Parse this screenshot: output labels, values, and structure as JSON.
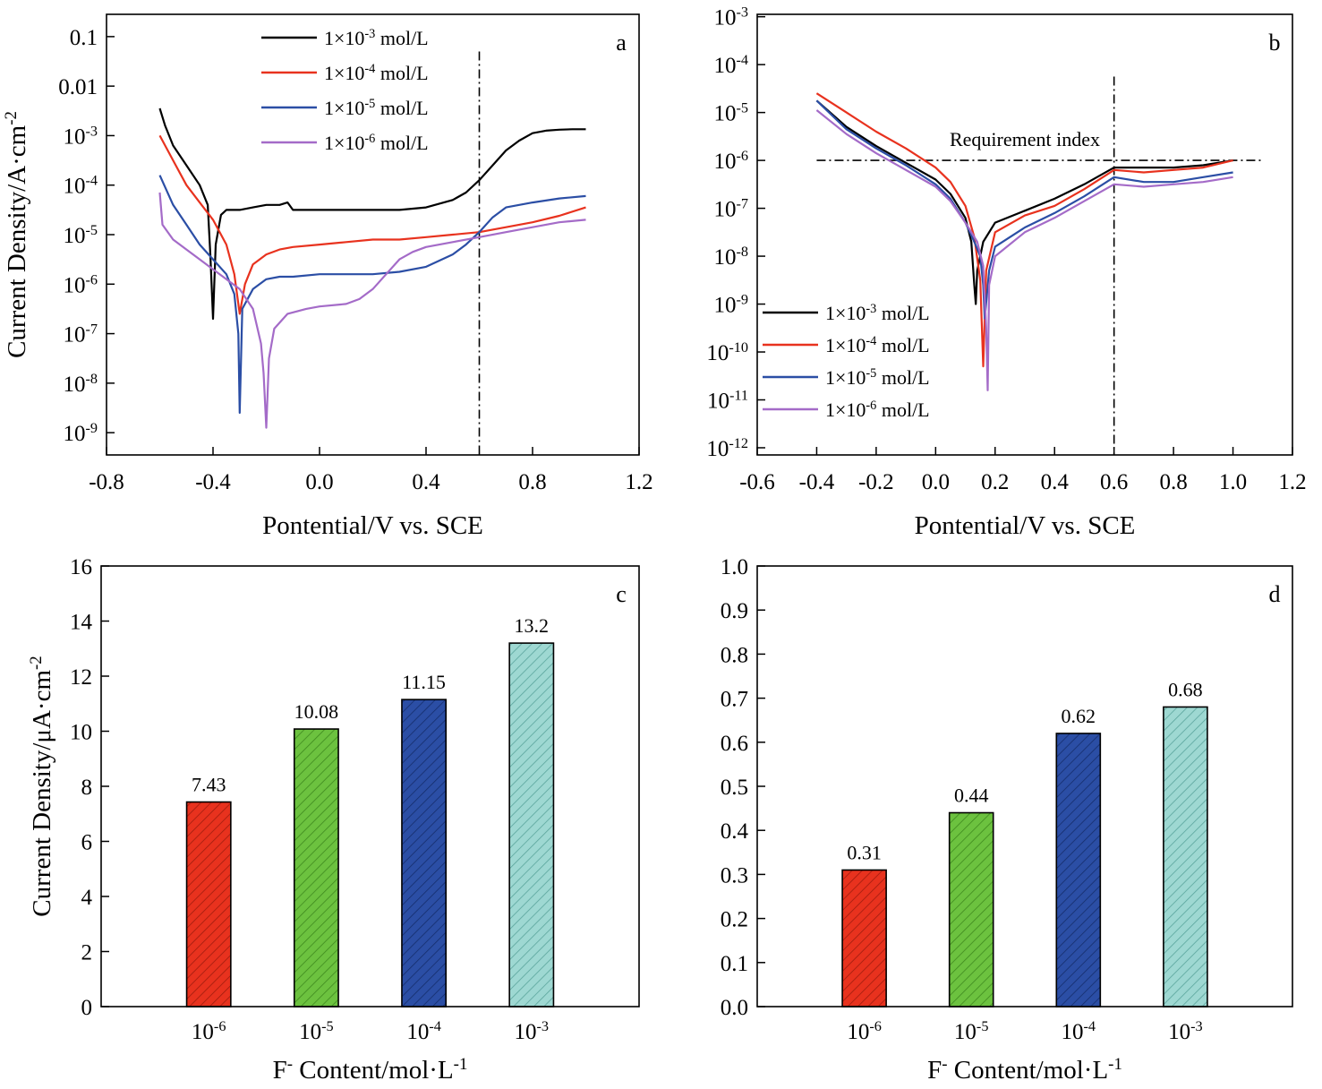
{
  "chart_data": [
    {
      "id": "a",
      "type": "line",
      "panel_label": "a",
      "xlabel": "Pontential/V vs. SCE",
      "ylabel": "Current Density/A·cm",
      "ylabel_sup": "-2",
      "xlim": [
        -0.8,
        1.2
      ],
      "ylog": true,
      "ylim_exp": [
        -9.45,
        -0.55
      ],
      "xticks": [
        -0.8,
        -0.4,
        0.0,
        0.4,
        0.8,
        1.2
      ],
      "xtick_labels": [
        "-0.8",
        "-0.4",
        "0.0",
        "0.4",
        "0.8",
        "1.2"
      ],
      "yticks_exp": [
        -9,
        -8,
        -7,
        -6,
        -5,
        -4,
        -3,
        -2,
        -1
      ],
      "ytick_labels": [
        {
          "base": "10",
          "sup": "-9"
        },
        {
          "base": "10",
          "sup": "-8"
        },
        {
          "base": "10",
          "sup": "-7"
        },
        {
          "base": "10",
          "sup": "-6"
        },
        {
          "base": "10",
          "sup": "-5"
        },
        {
          "base": "10",
          "sup": "-4"
        },
        {
          "base": "10",
          "sup": "-3"
        },
        {
          "base": "0.01",
          "sup": ""
        },
        {
          "base": "0.1",
          "sup": ""
        }
      ],
      "vline_x": 0.6,
      "legend_position": "top-center",
      "series": [
        {
          "name": "1×10",
          "name_sup": "-3",
          "name_suffix": " mol/L",
          "color": "#000000",
          "x": [
            -0.6,
            -0.58,
            -0.55,
            -0.5,
            -0.45,
            -0.42,
            -0.41,
            -0.4,
            -0.39,
            -0.37,
            -0.35,
            -0.3,
            -0.25,
            -0.2,
            -0.15,
            -0.12,
            -0.1,
            -0.05,
            0.0,
            0.1,
            0.2,
            0.3,
            0.4,
            0.5,
            0.55,
            0.6,
            0.65,
            0.7,
            0.75,
            0.8,
            0.85,
            0.9,
            0.95,
            1.0
          ],
          "y_exp": [
            -2.45,
            -2.8,
            -3.2,
            -3.6,
            -4.0,
            -4.4,
            -5.4,
            -6.7,
            -5.2,
            -4.6,
            -4.5,
            -4.5,
            -4.45,
            -4.4,
            -4.4,
            -4.35,
            -4.5,
            -4.5,
            -4.5,
            -4.5,
            -4.5,
            -4.5,
            -4.45,
            -4.3,
            -4.15,
            -3.9,
            -3.6,
            -3.3,
            -3.1,
            -2.95,
            -2.9,
            -2.88,
            -2.87,
            -2.87
          ]
        },
        {
          "name": "1×10",
          "name_sup": "-4",
          "name_suffix": " mol/L",
          "color": "#e8321e",
          "x": [
            -0.6,
            -0.55,
            -0.5,
            -0.45,
            -0.4,
            -0.35,
            -0.32,
            -0.3,
            -0.28,
            -0.25,
            -0.2,
            -0.15,
            -0.1,
            0.0,
            0.1,
            0.2,
            0.3,
            0.4,
            0.5,
            0.6,
            0.7,
            0.8,
            0.9,
            1.0
          ],
          "y_exp": [
            -3.0,
            -3.5,
            -4.0,
            -4.35,
            -4.7,
            -5.2,
            -5.8,
            -6.6,
            -6.0,
            -5.6,
            -5.4,
            -5.3,
            -5.25,
            -5.2,
            -5.15,
            -5.1,
            -5.1,
            -5.05,
            -5.0,
            -4.95,
            -4.85,
            -4.75,
            -4.62,
            -4.45
          ]
        },
        {
          "name": "1×10",
          "name_sup": "-5",
          "name_suffix": " mol/L",
          "color": "#2b4ea5",
          "x": [
            -0.6,
            -0.55,
            -0.5,
            -0.45,
            -0.4,
            -0.35,
            -0.32,
            -0.305,
            -0.3,
            -0.29,
            -0.25,
            -0.2,
            -0.15,
            -0.1,
            0.0,
            0.1,
            0.2,
            0.3,
            0.4,
            0.5,
            0.55,
            0.6,
            0.65,
            0.7,
            0.8,
            0.9,
            1.0
          ],
          "y_exp": [
            -3.8,
            -4.4,
            -4.8,
            -5.2,
            -5.5,
            -5.8,
            -6.2,
            -7.0,
            -8.6,
            -6.5,
            -6.1,
            -5.9,
            -5.85,
            -5.85,
            -5.8,
            -5.8,
            -5.8,
            -5.75,
            -5.65,
            -5.4,
            -5.2,
            -4.95,
            -4.65,
            -4.45,
            -4.35,
            -4.27,
            -4.22
          ]
        },
        {
          "name": "1×10",
          "name_sup": "-6",
          "name_suffix": " mol/L",
          "color": "#a46bc8",
          "x": [
            -0.6,
            -0.59,
            -0.55,
            -0.5,
            -0.45,
            -0.4,
            -0.35,
            -0.3,
            -0.25,
            -0.22,
            -0.21,
            -0.2,
            -0.19,
            -0.17,
            -0.12,
            -0.05,
            0.0,
            0.1,
            0.15,
            0.2,
            0.25,
            0.3,
            0.35,
            0.4,
            0.5,
            0.6,
            0.7,
            0.8,
            0.9,
            1.0
          ],
          "y_exp": [
            -4.15,
            -4.8,
            -5.1,
            -5.3,
            -5.5,
            -5.7,
            -5.9,
            -6.1,
            -6.5,
            -7.2,
            -7.8,
            -8.9,
            -7.5,
            -6.9,
            -6.6,
            -6.5,
            -6.45,
            -6.4,
            -6.3,
            -6.1,
            -5.8,
            -5.5,
            -5.35,
            -5.25,
            -5.15,
            -5.05,
            -4.95,
            -4.85,
            -4.75,
            -4.7
          ]
        }
      ]
    },
    {
      "id": "b",
      "type": "line",
      "panel_label": "b",
      "xlabel": "Pontential/V vs. SCE",
      "ylabel": "",
      "xlim": [
        -0.6,
        1.2
      ],
      "ylog": true,
      "ylim_exp": [
        -12.15,
        -2.95
      ],
      "xticks": [
        -0.6,
        -0.4,
        -0.2,
        0.0,
        0.2,
        0.4,
        0.6,
        0.8,
        1.0,
        1.2
      ],
      "xtick_labels": [
        "-0.6",
        "-0.4",
        "-0.2",
        "0.0",
        "0.2",
        "0.4",
        "0.6",
        "0.8",
        "1.0",
        "1.2"
      ],
      "yticks_exp": [
        -12,
        -11,
        -10,
        -9,
        -8,
        -7,
        -6,
        -5,
        -4,
        -3
      ],
      "ytick_labels": [
        {
          "base": "10",
          "sup": "-12"
        },
        {
          "base": "10",
          "sup": "-11"
        },
        {
          "base": "10",
          "sup": "-10"
        },
        {
          "base": "10",
          "sup": "-9"
        },
        {
          "base": "10",
          "sup": "-8"
        },
        {
          "base": "10",
          "sup": "-7"
        },
        {
          "base": "10",
          "sup": "-6"
        },
        {
          "base": "10",
          "sup": "-5"
        },
        {
          "base": "10",
          "sup": "-4"
        },
        {
          "base": "10",
          "sup": "-3"
        }
      ],
      "hline_exp": -6,
      "hline_xrange": [
        -0.4,
        1.1
      ],
      "hline_label": "Requirement index",
      "vline_x": 0.6,
      "legend_position": "bottom-left",
      "series": [
        {
          "name": "1×10",
          "name_sup": "-3",
          "name_suffix": " mol/L",
          "color": "#000000",
          "x": [
            -0.4,
            -0.3,
            -0.2,
            -0.1,
            0.0,
            0.05,
            0.1,
            0.12,
            0.13,
            0.135,
            0.14,
            0.16,
            0.2,
            0.3,
            0.4,
            0.5,
            0.6,
            0.7,
            0.8,
            0.9,
            1.0
          ],
          "y_exp": [
            -4.75,
            -5.3,
            -5.7,
            -6.05,
            -6.4,
            -6.7,
            -7.2,
            -7.7,
            -8.6,
            -9.0,
            -8.3,
            -7.7,
            -7.3,
            -7.05,
            -6.8,
            -6.5,
            -6.15,
            -6.15,
            -6.15,
            -6.1,
            -6.0
          ]
        },
        {
          "name": "1×10",
          "name_sup": "-4",
          "name_suffix": " mol/L",
          "color": "#e8321e",
          "x": [
            -0.4,
            -0.3,
            -0.2,
            -0.1,
            0.0,
            0.05,
            0.1,
            0.13,
            0.15,
            0.16,
            0.17,
            0.2,
            0.3,
            0.4,
            0.5,
            0.6,
            0.7,
            0.8,
            0.9,
            1.0
          ],
          "y_exp": [
            -4.6,
            -5.0,
            -5.4,
            -5.75,
            -6.15,
            -6.45,
            -6.95,
            -7.6,
            -8.5,
            -10.3,
            -8.3,
            -7.5,
            -7.15,
            -6.95,
            -6.6,
            -6.2,
            -6.25,
            -6.2,
            -6.15,
            -6.0
          ]
        },
        {
          "name": "1×10",
          "name_sup": "-5",
          "name_suffix": " mol/L",
          "color": "#2b4ea5",
          "x": [
            -0.4,
            -0.3,
            -0.2,
            -0.1,
            0.0,
            0.05,
            0.1,
            0.13,
            0.15,
            0.16,
            0.165,
            0.18,
            0.2,
            0.3,
            0.4,
            0.5,
            0.6,
            0.7,
            0.8,
            0.9,
            1.0
          ],
          "y_exp": [
            -4.75,
            -5.35,
            -5.75,
            -6.1,
            -6.5,
            -6.8,
            -7.3,
            -7.7,
            -8.0,
            -8.6,
            -9.3,
            -8.3,
            -7.8,
            -7.4,
            -7.1,
            -6.75,
            -6.35,
            -6.45,
            -6.45,
            -6.35,
            -6.25
          ]
        },
        {
          "name": "1×10",
          "name_sup": "-6",
          "name_suffix": " mol/L",
          "color": "#a46bc8",
          "x": [
            -0.4,
            -0.3,
            -0.2,
            -0.1,
            0.0,
            0.05,
            0.1,
            0.14,
            0.16,
            0.17,
            0.175,
            0.18,
            0.2,
            0.3,
            0.4,
            0.5,
            0.6,
            0.7,
            0.8,
            0.9,
            1.0
          ],
          "y_exp": [
            -4.95,
            -5.45,
            -5.85,
            -6.2,
            -6.55,
            -6.85,
            -7.3,
            -7.7,
            -8.2,
            -9.5,
            -10.8,
            -8.6,
            -8.0,
            -7.5,
            -7.2,
            -6.85,
            -6.5,
            -6.55,
            -6.5,
            -6.45,
            -6.35
          ]
        }
      ]
    },
    {
      "id": "c",
      "type": "bar",
      "panel_label": "c",
      "xlabel_parts": {
        "pre": "F",
        "sup1": "-",
        "mid": " Content/mol·L",
        "sup2": "-1"
      },
      "ylabel": "Current Density/μA·cm",
      "ylabel_sup": "-2",
      "ylim": [
        0,
        16
      ],
      "yticks": [
        0,
        2,
        4,
        6,
        8,
        10,
        12,
        14,
        16
      ],
      "ytick_labels": [
        "0",
        "2",
        "4",
        "6",
        "8",
        "10",
        "12",
        "14",
        "16"
      ],
      "categories": [
        {
          "base": "10",
          "sup": "-6"
        },
        {
          "base": "10",
          "sup": "-5"
        },
        {
          "base": "10",
          "sup": "-4"
        },
        {
          "base": "10",
          "sup": "-3"
        }
      ],
      "values": [
        7.43,
        10.08,
        11.15,
        13.2
      ],
      "value_labels": [
        "7.43",
        "10.08",
        "11.15",
        "13.2"
      ],
      "colors": [
        "#e8321e",
        "#6cc23f",
        "#2b4ea5",
        "#9ed8d2"
      ]
    },
    {
      "id": "d",
      "type": "bar",
      "panel_label": "d",
      "xlabel_parts": {
        "pre": "F",
        "sup1": "-",
        "mid": " Content/mol·L",
        "sup2": "-1"
      },
      "ylabel": "",
      "ylim": [
        0,
        1.0
      ],
      "yticks": [
        0,
        0.1,
        0.2,
        0.3,
        0.4,
        0.5,
        0.6,
        0.7,
        0.8,
        0.9,
        1.0
      ],
      "ytick_labels": [
        "0.0",
        "0.1",
        "0.2",
        "0.3",
        "0.4",
        "0.5",
        "0.6",
        "0.7",
        "0.8",
        "0.9",
        "1.0"
      ],
      "categories": [
        {
          "base": "10",
          "sup": "-6"
        },
        {
          "base": "10",
          "sup": "-5"
        },
        {
          "base": "10",
          "sup": "-4"
        },
        {
          "base": "10",
          "sup": "-3"
        }
      ],
      "values": [
        0.31,
        0.44,
        0.62,
        0.68
      ],
      "value_labels": [
        "0.31",
        "0.44",
        "0.62",
        "0.68"
      ],
      "colors": [
        "#e8321e",
        "#6cc23f",
        "#2b4ea5",
        "#9ed8d2"
      ]
    }
  ]
}
